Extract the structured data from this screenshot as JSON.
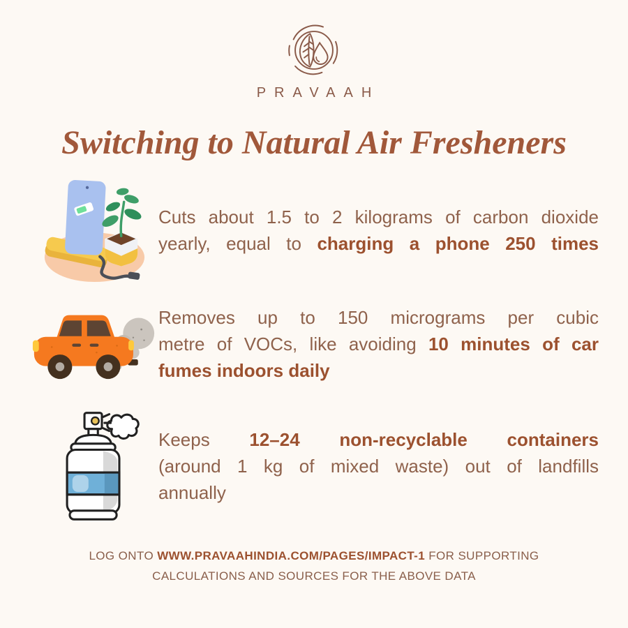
{
  "page": {
    "background": "#fdf9f4"
  },
  "brand": {
    "name": "PRAVAAH",
    "logo_icon": "leaf-water-drop-logo"
  },
  "title": "Switching to Natural Air Fresheners",
  "items": [
    {
      "icon": "phone-charging-plant-illustration",
      "lines": [
        {
          "justify": true,
          "segments": [
            {
              "text": "Cuts about 1.5 to 2 kilograms of carbon dioxide",
              "bold": false
            }
          ]
        },
        {
          "justify": true,
          "segments": [
            {
              "text": "yearly, equal to ",
              "bold": false
            },
            {
              "text": "charging a phone 250 times",
              "bold": true
            }
          ]
        }
      ]
    },
    {
      "icon": "car-exhaust-illustration",
      "lines": [
        {
          "justify": true,
          "segments": [
            {
              "text": "Removes up to 150 micrograms per cubic",
              "bold": false
            }
          ]
        },
        {
          "justify": true,
          "segments": [
            {
              "text": "metre of VOCs, like avoiding ",
              "bold": false
            },
            {
              "text": "10 minutes of car",
              "bold": true
            }
          ]
        },
        {
          "justify": false,
          "segments": [
            {
              "text": "fumes indoors daily",
              "bold": true
            }
          ]
        }
      ]
    },
    {
      "icon": "aerosol-spray-can-illustration",
      "lines": [
        {
          "justify": true,
          "segments": [
            {
              "text": "Keeps ",
              "bold": false
            },
            {
              "text": "12–24 non-recyclable containers",
              "bold": true
            }
          ]
        },
        {
          "justify": true,
          "segments": [
            {
              "text": "(around 1 kg of mixed waste) out of landfills",
              "bold": false
            }
          ]
        },
        {
          "justify": false,
          "segments": [
            {
              "text": "annually",
              "bold": false
            }
          ]
        }
      ]
    }
  ],
  "footer": {
    "lines": [
      {
        "justify": false,
        "segments": [
          {
            "text": "LOG ONTO ",
            "bold": false
          },
          {
            "text": "WWW.PRAVAAHINDIA.COM/PAGES/IMPACT-1",
            "bold": true
          },
          {
            "text": " FOR SUPPORTING",
            "bold": false
          }
        ]
      },
      {
        "justify": false,
        "segments": [
          {
            "text": "CALCULATIONS AND SOURCES FOR THE ABOVE DATA",
            "bold": false
          }
        ]
      }
    ]
  },
  "colors": {
    "background": "#fdf9f4",
    "title_brown": "#a1583a",
    "body_brown": "#8f624c",
    "highlight_brown": "#9c512f",
    "logo_brown": "#8a5a49"
  }
}
